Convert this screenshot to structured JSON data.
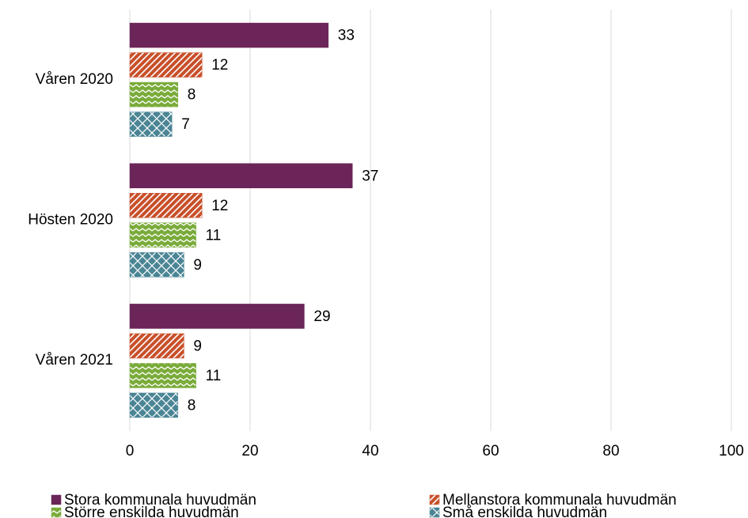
{
  "chart_data": {
    "type": "hbar",
    "categories": [
      "Våren 2020",
      "Hösten 2020",
      "Våren 2021"
    ],
    "series": [
      {
        "name": "Stora kommunala huvudmän",
        "color": "#6b2558",
        "pattern": "solid",
        "values": [
          33,
          37,
          29
        ]
      },
      {
        "name": "Mellanstora kommunala huvudmän",
        "color": "#c8502a",
        "pattern": "diagonal",
        "values": [
          12,
          12,
          9
        ]
      },
      {
        "name": "Större enskilda huvudmän",
        "color": "#7aab3a",
        "pattern": "zigzag",
        "values": [
          8,
          11,
          11
        ]
      },
      {
        "name": "Små enskilda huvudmän",
        "color": "#4a8594",
        "pattern": "crosshatch",
        "values": [
          7,
          9,
          8
        ]
      }
    ],
    "xlim": [
      0,
      100
    ],
    "xticks": [
      0,
      20,
      40,
      60,
      80,
      100
    ],
    "grid": true,
    "legend": "bottom"
  }
}
